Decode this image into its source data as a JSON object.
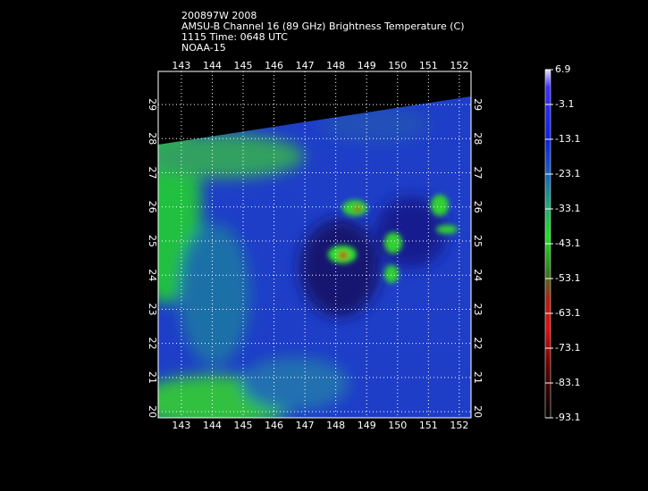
{
  "header": {
    "lines": [
      "200897W 2008",
      "AMSU-B Channel 16 (89 GHz) Brightness Temperature (C)",
      "1115 Time: 0648 UTC",
      "NOAA-15"
    ]
  },
  "map": {
    "xlim": [
      142.25,
      152.38
    ],
    "ylim": [
      19.82,
      29.97
    ],
    "xticks": [
      143,
      144,
      145,
      146,
      147,
      148,
      149,
      150,
      151,
      152
    ],
    "yticks": [
      20,
      21,
      22,
      23,
      24,
      25,
      26,
      27,
      28,
      29
    ]
  },
  "colorbar": {
    "lim": [
      -93.1,
      6.9
    ],
    "ticks": [
      6.9,
      -3.1,
      -13.1,
      -23.1,
      -33.1,
      -43.1,
      -53.1,
      -63.1,
      -73.1,
      -83.1,
      -93.1
    ]
  }
}
